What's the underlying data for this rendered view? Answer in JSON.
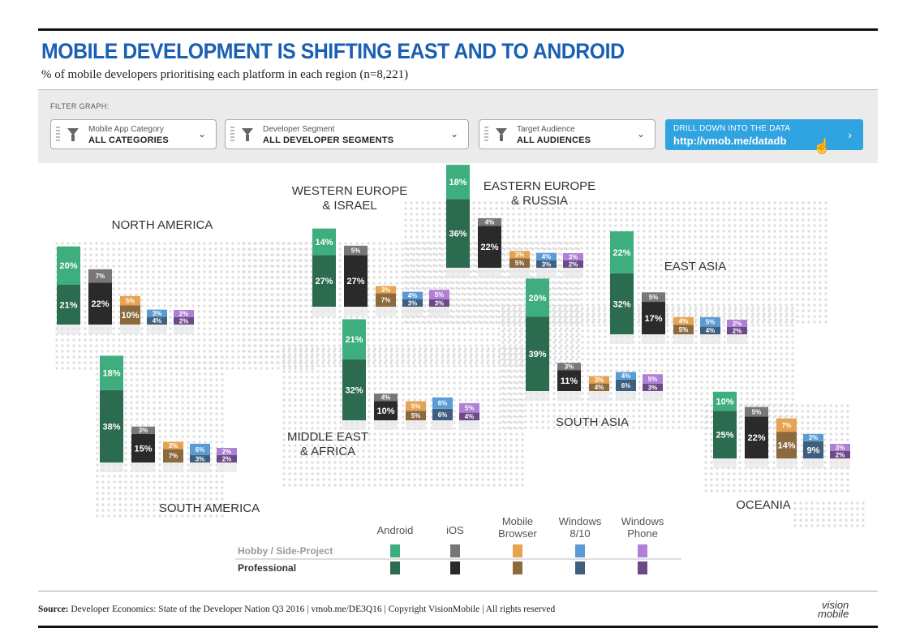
{
  "header": {
    "title": "MOBILE DEVELOPMENT IS SHIFTING EAST AND TO ANDROID",
    "subtitle": "% of mobile developers prioritising each platform in each region (n=8,221)"
  },
  "filters": {
    "label": "FILTER GRAPH:",
    "dropdowns": [
      {
        "caption": "Mobile App Category",
        "value": "ALL CATEGORIES"
      },
      {
        "caption": "Developer Segment",
        "value": "ALL DEVELOPER SEGMENTS"
      },
      {
        "caption": "Target Audience",
        "value": "ALL AUDIENCES"
      }
    ],
    "drill": {
      "caption": "DRILL DOWN INTO THE DATA",
      "url": "http://vmob.me/datadb"
    }
  },
  "footer": {
    "source_label": "Source:",
    "source_text": " Developer Economics: State of the Developer Nation Q3 2016  |  vmob.me/DE3Q16  |  Copyright VisionMobile  |  All rights reserved",
    "logo_line1": "vision",
    "logo_line2": "mobile"
  },
  "chart_data": {
    "type": "bar",
    "platforms": [
      "Android",
      "iOS",
      "Mobile Browser",
      "Windows 8/10",
      "Windows Phone"
    ],
    "segments": [
      "Hobby / Side-Project",
      "Professional"
    ],
    "colors": {
      "Android": {
        "hobby": "#3fae7f",
        "pro": "#2b6b4f"
      },
      "iOS": {
        "hobby": "#777777",
        "pro": "#2a2a2a"
      },
      "Mobile Browser": {
        "hobby": "#e6a452",
        "pro": "#8b6a3e"
      },
      "Windows 8/10": {
        "hobby": "#5a9bd4",
        "pro": "#3e5f7d"
      },
      "Windows Phone": {
        "hobby": "#b07fd6",
        "pro": "#6b4a86"
      }
    },
    "regions": [
      {
        "name": "NORTH AMERICA",
        "hobby": [
          20,
          7,
          5,
          3,
          2
        ],
        "pro": [
          21,
          22,
          10,
          4,
          2
        ]
      },
      {
        "name": "SOUTH AMERICA",
        "hobby": [
          18,
          3,
          3,
          6,
          2
        ],
        "pro": [
          38,
          15,
          7,
          3,
          2
        ]
      },
      {
        "name": "WESTERN EUROPE & ISRAEL",
        "hobby": [
          14,
          5,
          3,
          4,
          5
        ],
        "pro": [
          27,
          27,
          7,
          3,
          3
        ]
      },
      {
        "name": "MIDDLE EAST & AFRICA",
        "hobby": [
          21,
          4,
          5,
          6,
          5
        ],
        "pro": [
          32,
          10,
          5,
          6,
          4
        ]
      },
      {
        "name": "EASTERN EUROPE & RUSSIA",
        "hobby": [
          18,
          4,
          3,
          4,
          3
        ],
        "pro": [
          36,
          22,
          5,
          3,
          2
        ]
      },
      {
        "name": "SOUTH ASIA",
        "hobby": [
          20,
          3,
          3,
          4,
          5
        ],
        "pro": [
          39,
          11,
          4,
          6,
          3
        ]
      },
      {
        "name": "EAST ASIA",
        "hobby": [
          22,
          5,
          4,
          5,
          2
        ],
        "pro": [
          32,
          17,
          5,
          4,
          2
        ]
      },
      {
        "name": "OCEANIA",
        "hobby": [
          10,
          5,
          7,
          3,
          3
        ],
        "pro": [
          25,
          22,
          14,
          9,
          2
        ]
      }
    ],
    "legend_labels": [
      "Android",
      "iOS",
      "Mobile\nBrowser",
      "Windows\n8/10",
      "Windows\nPhone"
    ],
    "legend_rows": [
      "Hobby / Side-Project",
      "Professional"
    ]
  }
}
